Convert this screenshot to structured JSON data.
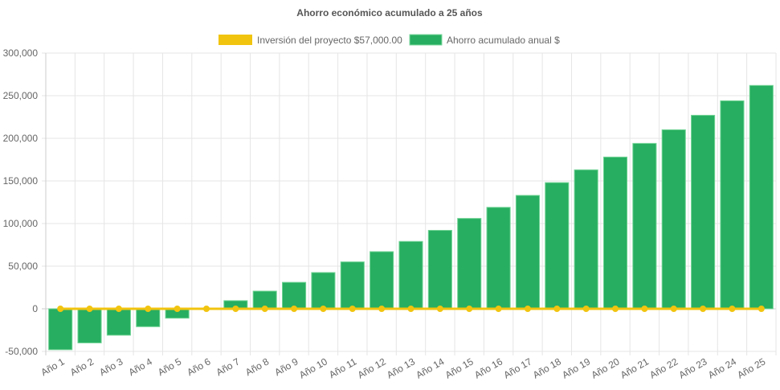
{
  "chart_data": {
    "type": "bar+line",
    "title": "Ahorro económico acumulado a 25 años",
    "categories": [
      "Año 1",
      "Año 2",
      "Año 3",
      "Año 4",
      "Año 5",
      "Año 6",
      "Año 7",
      "Año 8",
      "Año 9",
      "Año 10",
      "Año 11",
      "Año 12",
      "Año 13",
      "Año 14",
      "Año 15",
      "Año 16",
      "Año 17",
      "Año 18",
      "Año 19",
      "Año 20",
      "Año 21",
      "Año 22",
      "Año 23",
      "Año 24",
      "Año 25"
    ],
    "series": [
      {
        "name": "Inversión del proyecto $57,000.00",
        "type": "line",
        "color": "#f1c40f",
        "values": [
          0,
          0,
          0,
          0,
          0,
          0,
          0,
          0,
          0,
          0,
          0,
          0,
          0,
          0,
          0,
          0,
          0,
          0,
          0,
          0,
          0,
          0,
          0,
          0,
          0
        ]
      },
      {
        "name": "Ahorro acumulado anual $",
        "type": "bar",
        "color": "#27ae60",
        "values": [
          -48000,
          -40000,
          -31000,
          -21000,
          -11000,
          0,
          9500,
          20700,
          31000,
          42500,
          55000,
          67000,
          79000,
          92000,
          106000,
          119000,
          133000,
          148000,
          163000,
          178000,
          194000,
          210000,
          227000,
          244000,
          262000
        ]
      }
    ],
    "ylim": [
      -50000,
      300000
    ],
    "yticks": [
      "300,000",
      "250,000",
      "200,000",
      "150,000",
      "100,000",
      "50,000",
      "0",
      "-50,000"
    ],
    "ytick_values": [
      300000,
      250000,
      200000,
      150000,
      100000,
      50000,
      0,
      -50000
    ],
    "grid": true,
    "legend": "top"
  }
}
